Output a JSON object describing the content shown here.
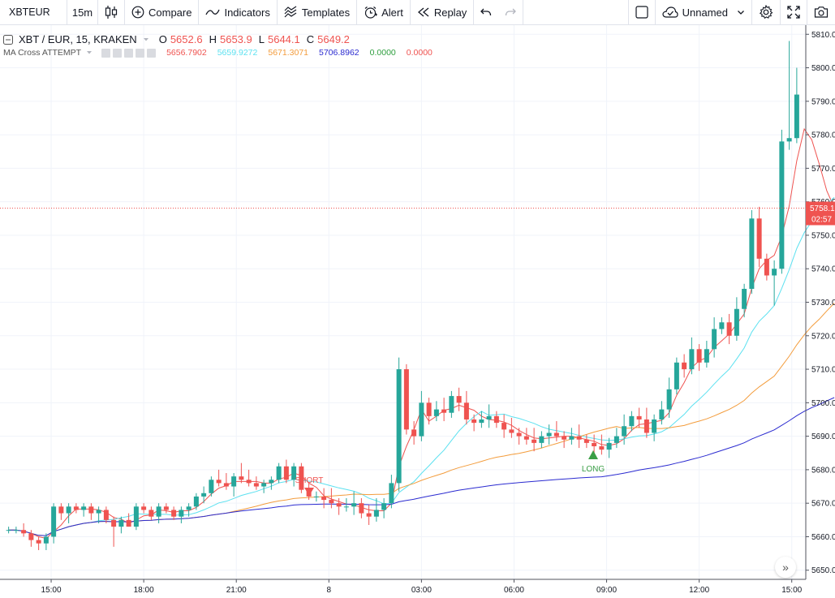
{
  "toolbar": {
    "symbol": "XBTEUR",
    "interval": "15m",
    "compare_label": "Compare",
    "indicators_label": "Indicators",
    "templates_label": "Templates",
    "alert_label": "Alert",
    "replay_label": "Replay",
    "layout_name": "Unnamed"
  },
  "legend": {
    "symbol_title": "XBT / EUR, 15, KRAKEN",
    "o_label": "O",
    "o_value": "5652.6",
    "h_label": "H",
    "h_value": "5653.9",
    "l_label": "L",
    "l_value": "5644.1",
    "c_label": "C",
    "c_value": "5649.2"
  },
  "study": {
    "name": "MA Cross ATTEMPT",
    "values": [
      {
        "text": "5656.7902",
        "color": "#ef5350"
      },
      {
        "text": "5659.9272",
        "color": "#5ce1f0"
      },
      {
        "text": "5671.3071",
        "color": "#f39c3c"
      },
      {
        "text": "5706.8962",
        "color": "#2b2bd0"
      },
      {
        "text": "0.0000",
        "color": "#2e9e3e"
      },
      {
        "text": "0.0000",
        "color": "#ef5350"
      }
    ]
  },
  "colors": {
    "up": "#26a69a",
    "down": "#ef5350",
    "ma_fast": "#ef5350",
    "ma_cyan": "#5ce1f0",
    "ma_orange": "#f39c3c",
    "ma_blue": "#2b2bd0",
    "long": "#3a9e45",
    "short": "#ef5350"
  },
  "chart_data": {
    "type": "candlestick",
    "price_axis": {
      "range": [
        5648,
        5812
      ],
      "ticks": [
        "5650.0",
        "5660.0",
        "5670.0",
        "5680.0",
        "5690.0",
        "5700.0",
        "5710.0",
        "5720.0",
        "5730.0",
        "5740.0",
        "5750.0",
        "5760.0",
        "5770.0",
        "5780.0",
        "5790.0",
        "5800.0",
        "5810.0"
      ]
    },
    "last_price": "5758.1",
    "countdown": "02:57",
    "time_axis": {
      "labels": [
        {
          "text": "15:00",
          "bar": 6
        },
        {
          "text": "18:00",
          "bar": 18
        },
        {
          "text": "21:00",
          "bar": 30
        },
        {
          "text": "8",
          "bar": 42
        },
        {
          "text": "03:00",
          "bar": 54
        },
        {
          "text": "06:00",
          "bar": 66
        },
        {
          "text": "09:00",
          "bar": 78
        },
        {
          "text": "12:00",
          "bar": 90
        },
        {
          "text": "15:00",
          "bar": 102
        }
      ]
    },
    "candles": [
      [
        5662.0,
        5663.0,
        5661.0,
        5662.0
      ],
      [
        5662.0,
        5663.0,
        5661.0,
        5662.0
      ],
      [
        5662.0,
        5664.0,
        5660.0,
        5661.0
      ],
      [
        5661.0,
        5662.0,
        5657.0,
        5659.0
      ],
      [
        5659.0,
        5660.0,
        5656.0,
        5658.0
      ],
      [
        5658.0,
        5661.0,
        5656.0,
        5660.0
      ],
      [
        5660.0,
        5670.0,
        5658.0,
        5669.0
      ],
      [
        5669.0,
        5670.0,
        5665.0,
        5667.0
      ],
      [
        5667.0,
        5670.0,
        5664.0,
        5669.0
      ],
      [
        5669.0,
        5670.0,
        5667.0,
        5668.0
      ],
      [
        5668.0,
        5670.0,
        5666.0,
        5669.0
      ],
      [
        5669.0,
        5670.0,
        5665.0,
        5667.0
      ],
      [
        5667.0,
        5669.0,
        5664.0,
        5668.0
      ],
      [
        5668.0,
        5669.0,
        5664.0,
        5665.0
      ],
      [
        5665.0,
        5666.0,
        5657.0,
        5663.0
      ],
      [
        5663.0,
        5666.0,
        5661.0,
        5665.0
      ],
      [
        5665.0,
        5667.0,
        5663.0,
        5663.0
      ],
      [
        5663.0,
        5670.0,
        5662.0,
        5669.0
      ],
      [
        5669.0,
        5670.0,
        5667.0,
        5668.0
      ],
      [
        5668.0,
        5669.0,
        5665.0,
        5666.0
      ],
      [
        5666.0,
        5670.0,
        5664.0,
        5669.0
      ],
      [
        5669.0,
        5670.0,
        5667.0,
        5668.0
      ],
      [
        5668.0,
        5669.0,
        5665.0,
        5666.0
      ],
      [
        5666.0,
        5669.0,
        5664.0,
        5668.0
      ],
      [
        5668.0,
        5670.0,
        5666.0,
        5669.0
      ],
      [
        5669.0,
        5673.0,
        5668.0,
        5672.0
      ],
      [
        5672.0,
        5675.0,
        5670.0,
        5673.0
      ],
      [
        5673.0,
        5678.0,
        5672.0,
        5677.0
      ],
      [
        5677.0,
        5680.0,
        5675.0,
        5676.0
      ],
      [
        5676.0,
        5679.0,
        5674.0,
        5675.0
      ],
      [
        5675.0,
        5679.0,
        5672.0,
        5678.0
      ],
      [
        5678.0,
        5682.0,
        5676.0,
        5677.0
      ],
      [
        5677.0,
        5680.0,
        5675.0,
        5676.0
      ],
      [
        5676.0,
        5678.0,
        5674.0,
        5675.0
      ],
      [
        5675.0,
        5677.0,
        5673.0,
        5676.0
      ],
      [
        5676.0,
        5678.0,
        5674.0,
        5677.0
      ],
      [
        5677.0,
        5682.0,
        5676.0,
        5681.0
      ],
      [
        5681.0,
        5683.0,
        5676.0,
        5677.0
      ],
      [
        5677.0,
        5682.0,
        5675.0,
        5681.0
      ],
      [
        5681.0,
        5682.0,
        5673.0,
        5674.0
      ],
      [
        5674.0,
        5676.0,
        5671.0,
        5672.0
      ]
    ],
    "markers": [
      {
        "text": "SHORT",
        "type": "short"
      },
      {
        "text": "LONG",
        "type": "long"
      }
    ]
  }
}
